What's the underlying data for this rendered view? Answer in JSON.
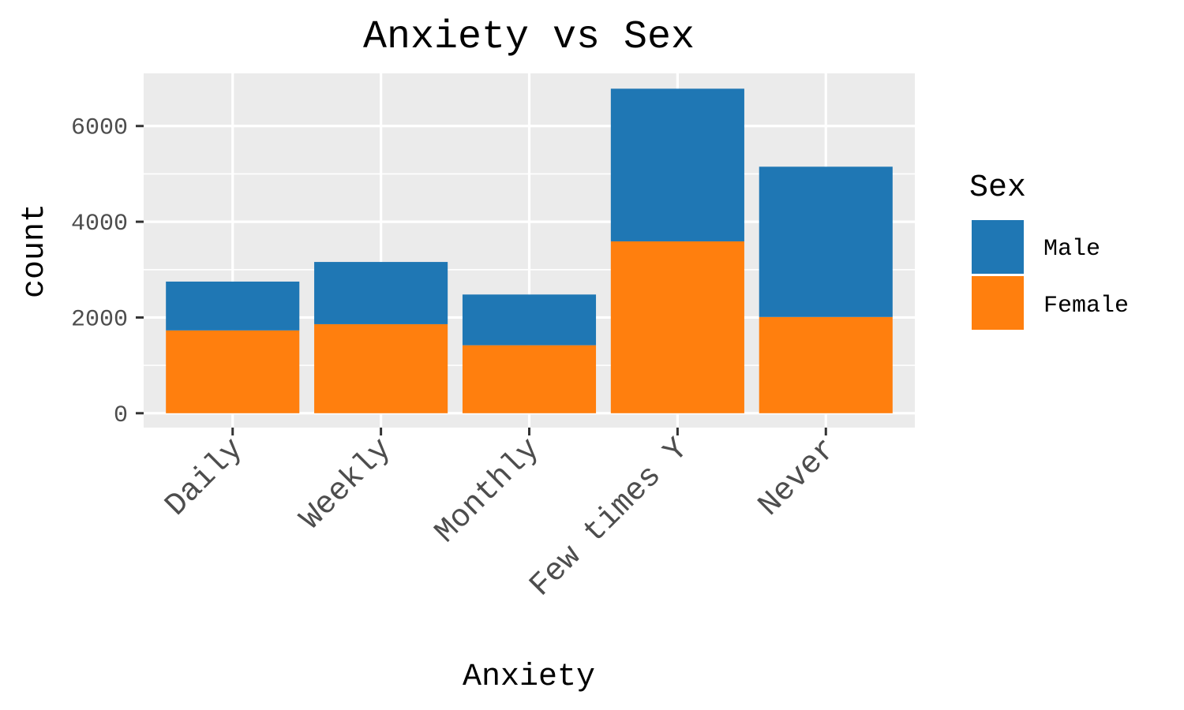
{
  "chart_data": {
    "type": "bar",
    "stacked": true,
    "title": "Anxiety vs Sex",
    "xlabel": "Anxiety",
    "ylabel": "count",
    "categories": [
      "Daily",
      "Weekly",
      "Monthly",
      "Few times Y",
      "Never"
    ],
    "series": [
      {
        "name": "Female",
        "color": "#ff7f0e",
        "values": [
          1730,
          1860,
          1420,
          3590,
          2010
        ]
      },
      {
        "name": "Male",
        "color": "#1f77b4",
        "values": [
          1020,
          1300,
          1060,
          3190,
          3140
        ]
      }
    ],
    "ylim": [
      -300,
      7100
    ],
    "y_ticks": [
      0,
      2000,
      4000,
      6000
    ],
    "y_tick_labels": [
      "0",
      "2000",
      "4000",
      "6000"
    ],
    "grid": true,
    "panel_background": "#ebebeb",
    "legend": {
      "title": "Sex",
      "position": "right",
      "items": [
        {
          "label": "Male",
          "color": "#1f77b4"
        },
        {
          "label": "Female",
          "color": "#ff7f0e"
        }
      ]
    }
  }
}
